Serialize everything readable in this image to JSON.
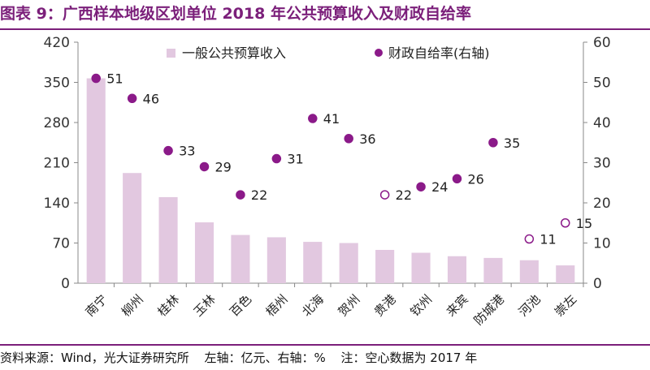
{
  "header": {
    "title": "图表 9：广西样本地级区划单位 2018 年公共预算收入及财政自给率"
  },
  "footer": {
    "source": "资料来源：Wind，光大证券研究所",
    "axes_note": "左轴：亿元、右轴：%",
    "note": "注：空心数据为 2017 年"
  },
  "colors": {
    "accent": "#7b1f7a",
    "bar": "#e2c8e0",
    "dot": "#8b1a89"
  },
  "chart_data": {
    "type": "bar",
    "categories": [
      "南宁",
      "柳州",
      "桂林",
      "玉林",
      "百色",
      "梧州",
      "北海",
      "贺州",
      "贵港",
      "钦州",
      "来宾",
      "防城港",
      "河池",
      "崇左"
    ],
    "series": [
      {
        "name": "一般公共预算收入",
        "type": "bar",
        "axis": "left",
        "values": [
          357,
          192,
          150,
          106,
          84,
          80,
          72,
          70,
          58,
          53,
          47,
          44,
          40,
          31
        ]
      },
      {
        "name": "财政自给率(右轴)",
        "type": "scatter",
        "axis": "right",
        "values": [
          51,
          46,
          33,
          29,
          22,
          31,
          41,
          36,
          22,
          24,
          26,
          35,
          11,
          15
        ],
        "hollow": [
          false,
          false,
          false,
          false,
          false,
          false,
          false,
          false,
          true,
          false,
          false,
          false,
          true,
          true
        ]
      }
    ],
    "y_left": {
      "ticks": [
        0,
        70,
        140,
        210,
        280,
        350,
        420
      ],
      "ylim": [
        0,
        420
      ]
    },
    "y_right": {
      "ticks": [
        0,
        10,
        20,
        30,
        40,
        50,
        60
      ],
      "ylim": [
        0,
        60
      ]
    },
    "legend": {
      "placement": "top",
      "bar_label": "一般公共预算收入",
      "dot_label": "财政自给率(右轴)"
    }
  }
}
